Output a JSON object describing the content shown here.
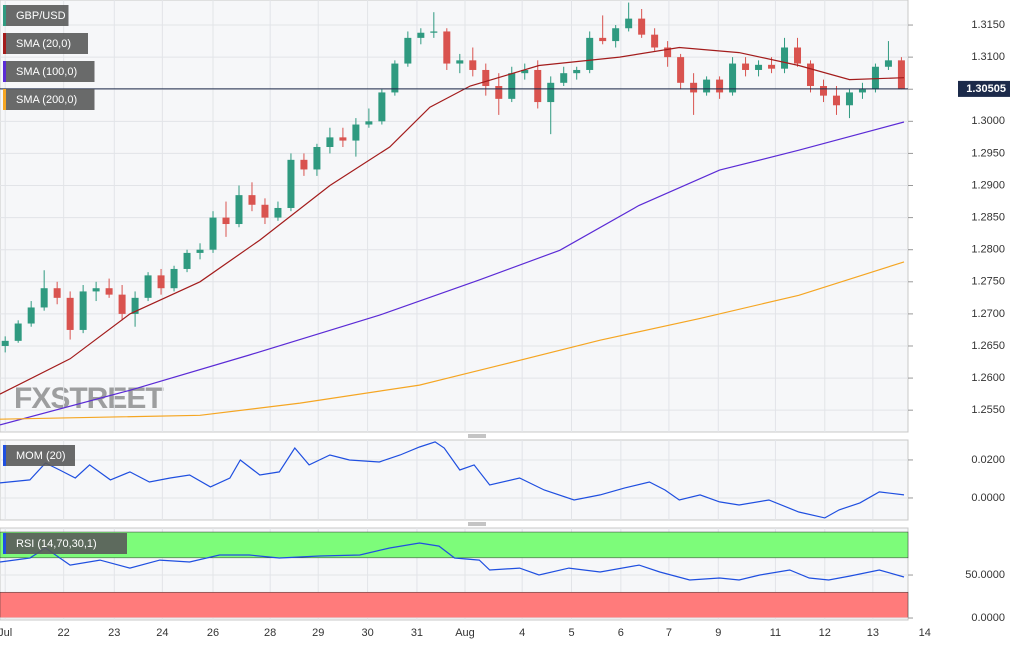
{
  "chart_data": [
    {
      "type": "candlestick",
      "watermark": "FXSTREET",
      "xlim": [
        -0.4,
        71.2
      ],
      "xticks": [
        {
          "value": 0,
          "label": "Jul"
        },
        {
          "value": 4.5,
          "label": "22"
        },
        {
          "value": 8.4,
          "label": "23"
        },
        {
          "value": 12.1,
          "label": "24"
        },
        {
          "value": 16,
          "label": "26"
        },
        {
          "value": 20.4,
          "label": "28"
        },
        {
          "value": 24.1,
          "label": "29"
        },
        {
          "value": 27.9,
          "label": "30"
        },
        {
          "value": 31.7,
          "label": "31"
        },
        {
          "value": 35.4,
          "label": "Aug"
        },
        {
          "value": 39.8,
          "label": "4"
        },
        {
          "value": 43.6,
          "label": "5"
        },
        {
          "value": 47.4,
          "label": "6"
        },
        {
          "value": 51.1,
          "label": "7"
        },
        {
          "value": 54.9,
          "label": "9"
        },
        {
          "value": 59.3,
          "label": "11"
        },
        {
          "value": 63.1,
          "label": "12"
        },
        {
          "value": 66.8,
          "label": "13"
        },
        {
          "value": 70.8,
          "label": "14"
        }
      ],
      "ylim": [
        1.2516,
        1.3189
      ],
      "yticks": [
        {
          "value": 1.315,
          "label": "1.3150"
        },
        {
          "value": 1.31,
          "label": "1.3100"
        },
        {
          "value": 1.305,
          "label": "1.3050"
        },
        {
          "value": 1.3,
          "label": "1.3000"
        },
        {
          "value": 1.295,
          "label": "1.2950"
        },
        {
          "value": 1.29,
          "label": "1.2900"
        },
        {
          "value": 1.285,
          "label": "1.2850"
        },
        {
          "value": 1.28,
          "label": "1.2800"
        },
        {
          "value": 1.275,
          "label": "1.2750"
        },
        {
          "value": 1.27,
          "label": "1.2700"
        },
        {
          "value": 1.265,
          "label": "1.2650"
        },
        {
          "value": 1.26,
          "label": "1.2600"
        },
        {
          "value": 1.255,
          "label": "1.2550"
        }
      ],
      "last_price": 1.30505,
      "last_price_color": "#1c2a4a",
      "grid": true,
      "series": [
        {
          "name": "GBP/USD",
          "color": "#2f9a80",
          "color_down": "#d9534f",
          "ohlc": [
            [
              1.265,
              1.2665,
              1.264,
              1.2658
            ],
            [
              1.2658,
              1.269,
              1.2655,
              1.2685
            ],
            [
              1.2685,
              1.272,
              1.268,
              1.271
            ],
            [
              1.271,
              1.2768,
              1.2705,
              1.274
            ],
            [
              1.274,
              1.275,
              1.2715,
              1.2725
            ],
            [
              1.2725,
              1.2735,
              1.266,
              1.2675
            ],
            [
              1.2675,
              1.2745,
              1.267,
              1.2735
            ],
            [
              1.2735,
              1.275,
              1.272,
              1.274
            ],
            [
              1.274,
              1.2755,
              1.2725,
              1.273
            ],
            [
              1.273,
              1.2745,
              1.269,
              1.27
            ],
            [
              1.27,
              1.2735,
              1.268,
              1.2725
            ],
            [
              1.2725,
              1.2765,
              1.272,
              1.276
            ],
            [
              1.276,
              1.277,
              1.273,
              1.274
            ],
            [
              1.274,
              1.2775,
              1.2735,
              1.277
            ],
            [
              1.277,
              1.28,
              1.2765,
              1.2795
            ],
            [
              1.2795,
              1.281,
              1.2785,
              1.28
            ],
            [
              1.28,
              1.286,
              1.2795,
              1.285
            ],
            [
              1.285,
              1.2875,
              1.282,
              1.284
            ],
            [
              1.284,
              1.29,
              1.2835,
              1.2885
            ],
            [
              1.2885,
              1.2905,
              1.286,
              1.287
            ],
            [
              1.287,
              1.288,
              1.284,
              1.285
            ],
            [
              1.285,
              1.2875,
              1.2845,
              1.2865
            ],
            [
              1.2865,
              1.295,
              1.286,
              1.294
            ],
            [
              1.294,
              1.295,
              1.2915,
              1.2925
            ],
            [
              1.2925,
              1.2965,
              1.2915,
              1.296
            ],
            [
              1.296,
              1.299,
              1.295,
              1.2975
            ],
            [
              1.2975,
              1.299,
              1.296,
              1.297
            ],
            [
              1.297,
              1.3005,
              1.2945,
              1.2995
            ],
            [
              1.2995,
              1.302,
              1.299,
              1.3
            ],
            [
              1.3,
              1.305,
              1.2995,
              1.3045
            ],
            [
              1.3045,
              1.3095,
              1.304,
              1.309
            ],
            [
              1.309,
              1.314,
              1.3085,
              1.313
            ],
            [
              1.313,
              1.3145,
              1.312,
              1.3138
            ],
            [
              1.3138,
              1.317,
              1.313,
              1.314
            ],
            [
              1.314,
              1.3145,
              1.308,
              1.309
            ],
            [
              1.309,
              1.3105,
              1.3075,
              1.3095
            ],
            [
              1.3095,
              1.3115,
              1.307,
              1.308
            ],
            [
              1.308,
              1.309,
              1.304,
              1.3055
            ],
            [
              1.3055,
              1.3075,
              1.301,
              1.3035
            ],
            [
              1.3035,
              1.3085,
              1.303,
              1.3075
            ],
            [
              1.3075,
              1.309,
              1.3065,
              1.308
            ],
            [
              1.308,
              1.3095,
              1.302,
              1.303
            ],
            [
              1.303,
              1.307,
              1.298,
              1.306
            ],
            [
              1.306,
              1.3085,
              1.3055,
              1.3075
            ],
            [
              1.3075,
              1.3085,
              1.3065,
              1.308
            ],
            [
              1.308,
              1.314,
              1.3075,
              1.313
            ],
            [
              1.313,
              1.3165,
              1.312,
              1.3125
            ],
            [
              1.3125,
              1.315,
              1.3115,
              1.3145
            ],
            [
              1.3145,
              1.3185,
              1.314,
              1.316
            ],
            [
              1.316,
              1.3175,
              1.313,
              1.3135
            ],
            [
              1.3135,
              1.3145,
              1.311,
              1.3115
            ],
            [
              1.3115,
              1.3125,
              1.3085,
              1.31
            ],
            [
              1.31,
              1.3105,
              1.305,
              1.306
            ],
            [
              1.306,
              1.3075,
              1.301,
              1.3045
            ],
            [
              1.3045,
              1.307,
              1.304,
              1.3065
            ],
            [
              1.3065,
              1.307,
              1.3035,
              1.3045
            ],
            [
              1.3045,
              1.31,
              1.304,
              1.309
            ],
            [
              1.309,
              1.31,
              1.307,
              1.308
            ],
            [
              1.308,
              1.3095,
              1.307,
              1.3088
            ],
            [
              1.3088,
              1.31,
              1.3075,
              1.3082
            ],
            [
              1.3082,
              1.313,
              1.3075,
              1.3115
            ],
            [
              1.3115,
              1.313,
              1.3085,
              1.309
            ],
            [
              1.309,
              1.3095,
              1.3045,
              1.3055
            ],
            [
              1.3055,
              1.3065,
              1.303,
              1.304
            ],
            [
              1.304,
              1.3055,
              1.301,
              1.3025
            ],
            [
              1.3025,
              1.305,
              1.3005,
              1.3045
            ],
            [
              1.3045,
              1.306,
              1.3035,
              1.305
            ],
            [
              1.305,
              1.309,
              1.3045,
              1.3085
            ],
            [
              1.3085,
              1.3125,
              1.308,
              1.3095
            ],
            [
              1.3095,
              1.31,
              1.305,
              1.30505
            ]
          ]
        },
        {
          "name": "SMA (20,0)",
          "color": "#a31c1c",
          "x": [
            -0.4,
            5,
            9.6,
            15,
            19.6,
            25,
            29.6,
            32.7,
            35.8,
            41.1,
            47.3,
            51.9,
            56.5,
            61.1,
            65,
            69.2
          ],
          "values": [
            1.2575,
            1.263,
            1.27,
            1.275,
            1.2815,
            1.29,
            1.296,
            1.3022,
            1.3055,
            1.3087,
            1.31,
            1.3115,
            1.3107,
            1.3087,
            1.3065,
            1.3068
          ]
        },
        {
          "name": "SMA (100,0)",
          "color": "#5b2bd6",
          "x": [
            -0.4,
            9.6,
            18.8,
            28.8,
            36.5,
            42.7,
            48.8,
            55,
            61.1,
            69.2
          ],
          "values": [
            1.2527,
            1.2581,
            1.2636,
            1.2698,
            1.2753,
            1.2799,
            1.2869,
            1.2924,
            1.2955,
            1.2999
          ]
        },
        {
          "name": "SMA (200,0)",
          "color": "#f5a623",
          "x": [
            -0.4,
            15,
            22.7,
            31.9,
            38.1,
            45.8,
            53.5,
            61.1,
            69.2
          ],
          "values": [
            1.2536,
            1.2542,
            1.2561,
            1.2589,
            1.262,
            1.2659,
            1.2693,
            1.2729,
            1.2781
          ]
        }
      ]
    },
    {
      "type": "line",
      "grid": true,
      "ylim": [
        -0.0116,
        0.0305
      ],
      "yticks": [
        {
          "value": 0.02,
          "label": "0.0200"
        },
        {
          "value": 0,
          "label": "0.0000"
        }
      ],
      "series": [
        {
          "name": "MOM (20)",
          "color": "#1f4fe0",
          "x": [
            -0.4,
            1.9,
            3.1,
            4.2,
            5.4,
            6.5,
            8.1,
            9.6,
            11.1,
            12.7,
            14.2,
            15.8,
            17.3,
            18.1,
            19.6,
            21.1,
            22.3,
            23.4,
            25,
            26.5,
            28.8,
            30.4,
            31.9,
            33.1,
            33.8,
            35,
            36.1,
            37.3,
            39.6,
            41.5,
            43.8,
            45.8,
            47.7,
            49.6,
            50.8,
            51.9,
            53.5,
            55,
            56.5,
            58.8,
            61.1,
            63.1,
            64.2,
            65.8,
            67.3,
            69.2
          ],
          "values": [
            0.0079,
            0.0095,
            0.0184,
            0.0147,
            0.0105,
            0.0174,
            0.0095,
            0.0137,
            0.0084,
            0.0105,
            0.0121,
            0.0058,
            0.0105,
            0.02,
            0.0121,
            0.0137,
            0.0263,
            0.0174,
            0.0226,
            0.02,
            0.0189,
            0.0226,
            0.0268,
            0.0295,
            0.0263,
            0.0147,
            0.0174,
            0.0068,
            0.0105,
            0.0042,
            -0.0011,
            0.0016,
            0.0053,
            0.0084,
            0.0042,
            -0.0011,
            0.0016,
            -0.0021,
            -0.0037,
            -0.0011,
            -0.0074,
            -0.0105,
            -0.0063,
            -0.0026,
            0.0032,
            0.0016
          ]
        }
      ]
    },
    {
      "type": "line",
      "grid": true,
      "ylim": [
        -2.3,
        104.7
      ],
      "yticks": [
        {
          "value": 50,
          "label": "50.0000"
        },
        {
          "value": 0,
          "label": "0.0000"
        }
      ],
      "zones": [
        {
          "from": 70,
          "to": 100,
          "color": "#7dfc7a"
        },
        {
          "from": 0,
          "to": 30,
          "color": "#ff7b7b"
        }
      ],
      "series": [
        {
          "name": "RSI (14,70,30,1)",
          "color": "#1f4fe0",
          "x": [
            -0.4,
            1.9,
            3.1,
            5,
            7.3,
            9.6,
            11.9,
            14.2,
            16.5,
            18.8,
            21.1,
            24.2,
            27.3,
            29.6,
            31.9,
            33.4,
            34.6,
            36.5,
            37.3,
            39.6,
            41.1,
            43.4,
            45.8,
            48.8,
            50.4,
            52.7,
            55,
            56.5,
            58.1,
            60.4,
            61.9,
            63.4,
            65,
            67.3,
            69.2
          ],
          "values": [
            65.1,
            69.8,
            81.4,
            61.6,
            67.4,
            58.1,
            67.4,
            65.1,
            73.3,
            73.3,
            69.8,
            72.1,
            73.3,
            81.4,
            87.2,
            83.7,
            69.8,
            67.4,
            55.8,
            58.1,
            50,
            58.1,
            53.5,
            61.6,
            53.5,
            44.2,
            46.5,
            44.2,
            50,
            55.8,
            46.5,
            44.2,
            48.8,
            55.8,
            47.7
          ]
        }
      ]
    }
  ]
}
